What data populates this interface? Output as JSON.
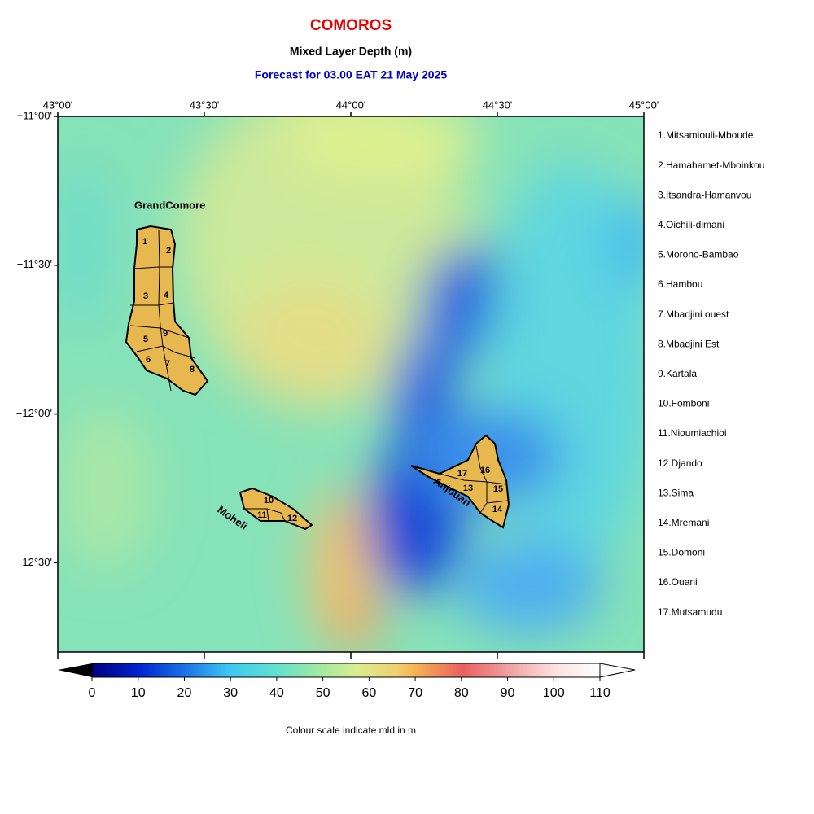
{
  "header": {
    "title": "COMOROS",
    "subtitle": "Mixed Layer Depth (m)",
    "forecast": "Forecast for  03.00 EAT 21 May 2025"
  },
  "map": {
    "xlim": [
      43,
      45
    ],
    "ylim": [
      -12.8,
      -11
    ],
    "xticks": [
      {
        "value": 43,
        "label": "43°00'"
      },
      {
        "value": 43.5,
        "label": "43°30'"
      },
      {
        "value": 44,
        "label": "44°00'"
      },
      {
        "value": 44.5,
        "label": "44°30'"
      },
      {
        "value": 45,
        "label": "45°00'"
      }
    ],
    "yticks": [
      {
        "value": -11,
        "label": "−11°00'"
      },
      {
        "value": -11.5,
        "label": "−11°30'"
      },
      {
        "value": -12,
        "label": "−12°00'"
      },
      {
        "value": -12.5,
        "label": "−12°30'"
      }
    ],
    "island_names": [
      "GrandComore",
      "Moheli",
      "Anjouan"
    ],
    "district_numbers": [
      "1",
      "2",
      "3",
      "4",
      "5",
      "6",
      "7",
      "8",
      "9",
      "10",
      "11",
      "12",
      "13",
      "14",
      "15",
      "16",
      "17"
    ]
  },
  "regions": [
    "1.Mitsamiouli-Mboude",
    "2.Hamahamet-Mboinkou",
    "3.Itsandra-Hamanvou",
    "4.Oichili-dimani",
    "5.Morono-Bambao",
    "6.Hambou",
    "7.Mbadjini ouest",
    "8.Mbadjini Est",
    "9.Kartala",
    "10.Fomboni",
    "11.Nioumiachioi",
    "12.Djando",
    "13.Sima",
    "14.Mremani",
    "15.Domoni",
    "16.Ouani",
    "17.Mutsamudu"
  ],
  "colorbar": {
    "lim": [
      0,
      110
    ],
    "ticks": [
      0,
      10,
      20,
      30,
      40,
      50,
      60,
      70,
      80,
      90,
      100,
      110
    ],
    "caption": "Colour scale indicate mld in m"
  }
}
